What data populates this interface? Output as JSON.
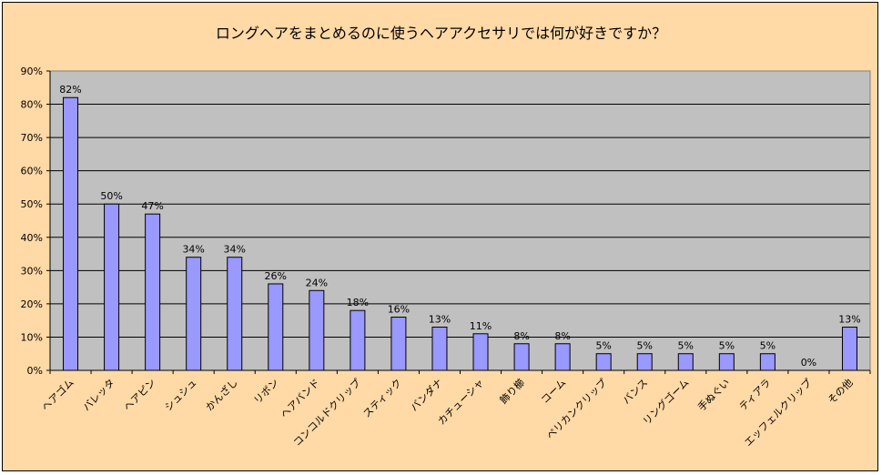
{
  "chart_data": {
    "type": "bar",
    "title": "ロングヘアをまとめるのに使うヘアアクセサリでは何が好きですか？",
    "categories": [
      "ヘアゴム",
      "バレッタ",
      "ヘアピン",
      "シュシュ",
      "かんざし",
      "リボン",
      "ヘアバンド",
      "コンコルドクリップ",
      "スティック",
      "バンダナ",
      "カチューシャ",
      "飾り櫛",
      "コーム",
      "ペリカンクリップ",
      "バンス",
      "リングゴーム",
      "手ぬぐい",
      "ティアラ",
      "エッフェルクリップ",
      "その他"
    ],
    "values": [
      82,
      50,
      47,
      34,
      34,
      26,
      24,
      18,
      16,
      13,
      11,
      8,
      8,
      5,
      5,
      5,
      5,
      5,
      0,
      13
    ],
    "data_labels": [
      "82%",
      "50%",
      "47%",
      "34%",
      "34%",
      "26%",
      "24%",
      "18%",
      "16%",
      "13%",
      "11%",
      "8%",
      "8%",
      "5%",
      "5%",
      "5%",
      "5%",
      "5%",
      "0%",
      "13%"
    ],
    "yticks": [
      "0%",
      "10%",
      "20%",
      "30%",
      "40%",
      "50%",
      "60%",
      "70%",
      "80%",
      "90%"
    ],
    "ylim": [
      0,
      90
    ],
    "xlabel": "",
    "ylabel": "",
    "grid": true,
    "legend": "none",
    "colors": {
      "bar": "#9999FF",
      "plot_background": "#C0C0C0",
      "chart_background": "#FFD9A6"
    }
  }
}
